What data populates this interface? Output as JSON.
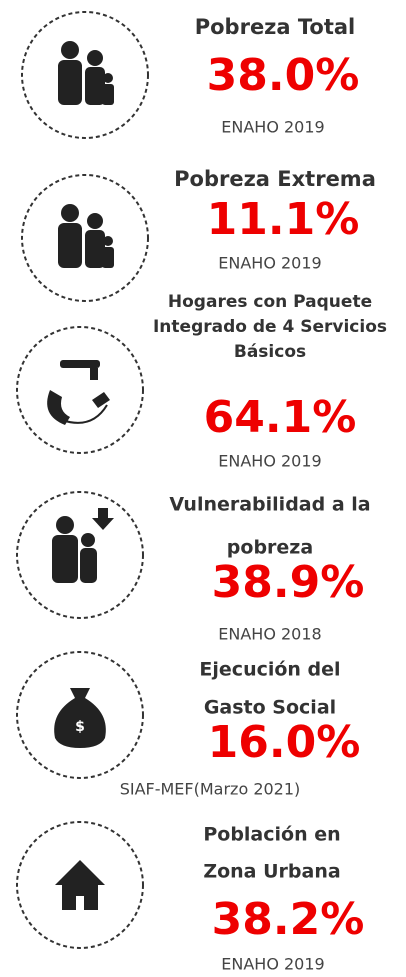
{
  "items": [
    {
      "title": [
        "Pobreza Total"
      ],
      "value": "38.0%",
      "source": "ENAHO 2019"
    },
    {
      "title": [
        "Pobreza Extrema"
      ],
      "value": "11.1%",
      "source": "ENAHO 2019"
    },
    {
      "title": [
        "Hogares con Paquete",
        "Integrado de 4 Servicios",
        "Básicos"
      ],
      "value": "64.1%",
      "source": "ENAHO 2019"
    },
    {
      "title": [
        "Vulnerabilidad a la",
        "pobreza"
      ],
      "value": "38.9%",
      "source": "ENAHO 2018"
    },
    {
      "title": [
        "Ejecución del",
        "Gasto Social"
      ],
      "value": "16.0%",
      "source": "SIAF-MEF(Marzo 2021)"
    },
    {
      "title": [
        "Población en",
        "Zona Urbana"
      ],
      "value": "38.2%",
      "source": "ENAHO 2019"
    }
  ]
}
